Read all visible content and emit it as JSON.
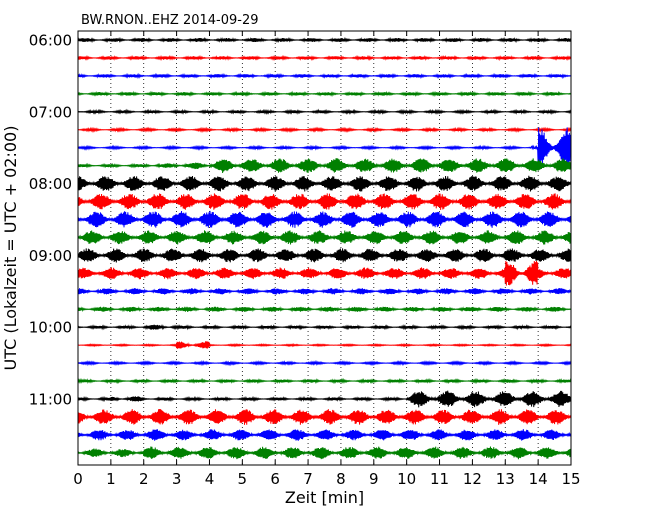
{
  "chart_data": {
    "type": "line",
    "title": "BW.RNON..EHZ 2014-09-29",
    "xlabel": "Zeit  [min]",
    "ylabel": "UTC (Lokalzeit = UTC + 02:00)",
    "xlim": [
      0,
      15
    ],
    "x_ticks": [
      "0",
      "1",
      "2",
      "3",
      "4",
      "5",
      "6",
      "7",
      "8",
      "9",
      "10",
      "11",
      "12",
      "13",
      "14",
      "15"
    ],
    "y_tick_labels": [
      "06:00",
      "07:00",
      "08:00",
      "09:00",
      "10:00",
      "11:00"
    ],
    "grid": {
      "vertical_dotted": true
    },
    "colors": [
      "#000000",
      "#ff0000",
      "#0000ff",
      "#008000"
    ],
    "series": [
      {
        "time": "06:00",
        "color": "#000000",
        "amplitude": [
          0.25,
          0.25,
          0.25,
          0.25,
          0.25,
          0.25,
          0.25,
          0.25,
          0.25,
          0.25,
          0.25,
          0.25,
          0.25,
          0.25,
          0.25,
          0.25
        ]
      },
      {
        "time": "06:15",
        "color": "#ff0000",
        "amplitude": [
          0.22,
          0.22,
          0.22,
          0.22,
          0.22,
          0.22,
          0.22,
          0.22,
          0.22,
          0.22,
          0.22,
          0.22,
          0.22,
          0.22,
          0.22,
          0.22
        ]
      },
      {
        "time": "06:30",
        "color": "#0000ff",
        "amplitude": [
          0.22,
          0.22,
          0.22,
          0.22,
          0.22,
          0.22,
          0.22,
          0.22,
          0.22,
          0.22,
          0.22,
          0.22,
          0.22,
          0.22,
          0.22,
          0.22
        ]
      },
      {
        "time": "06:45",
        "color": "#008000",
        "amplitude": [
          0.22,
          0.22,
          0.22,
          0.22,
          0.22,
          0.22,
          0.22,
          0.22,
          0.22,
          0.22,
          0.22,
          0.22,
          0.22,
          0.22,
          0.22,
          0.22
        ]
      },
      {
        "time": "07:00",
        "color": "#000000",
        "amplitude": [
          0.18,
          0.18,
          0.18,
          0.18,
          0.18,
          0.18,
          0.18,
          0.18,
          0.18,
          0.18,
          0.18,
          0.18,
          0.18,
          0.18,
          0.18,
          0.18
        ]
      },
      {
        "time": "07:15",
        "color": "#ff0000",
        "amplitude": [
          0.16,
          0.16,
          0.16,
          0.16,
          0.16,
          0.16,
          0.16,
          0.16,
          0.16,
          0.16,
          0.16,
          0.16,
          0.16,
          0.16,
          0.16,
          0.16
        ]
      },
      {
        "time": "07:30",
        "color": "#0000ff",
        "amplitude": [
          0.15,
          0.15,
          0.15,
          0.15,
          0.15,
          0.15,
          0.15,
          0.15,
          0.15,
          0.15,
          0.15,
          0.15,
          0.15,
          0.15,
          2.6,
          0.15
        ],
        "spike_min": 13.85
      },
      {
        "time": "07:45",
        "color": "#008000",
        "amplitude": [
          0.2,
          0.2,
          0.3,
          0.45,
          0.95,
          0.95,
          0.95,
          0.95,
          0.95,
          0.95,
          0.95,
          0.95,
          0.95,
          0.95,
          0.95,
          0.95
        ]
      },
      {
        "time": "08:00",
        "color": "#000000",
        "amplitude": [
          1.0,
          1.0,
          1.0,
          1.0,
          1.0,
          1.0,
          1.0,
          1.0,
          1.0,
          1.0,
          1.0,
          1.0,
          1.0,
          1.0,
          1.0,
          1.0
        ]
      },
      {
        "time": "08:15",
        "color": "#ff0000",
        "amplitude": [
          1.05,
          1.05,
          1.05,
          1.05,
          1.05,
          1.05,
          1.05,
          1.05,
          1.05,
          1.05,
          1.05,
          1.05,
          1.05,
          1.05,
          1.05,
          1.05
        ]
      },
      {
        "time": "08:30",
        "color": "#0000ff",
        "amplitude": [
          1.05,
          1.05,
          1.1,
          1.1,
          1.1,
          1.05,
          1.05,
          1.05,
          1.05,
          1.05,
          1.05,
          1.05,
          1.05,
          1.05,
          1.05,
          1.05
        ]
      },
      {
        "time": "08:45",
        "color": "#008000",
        "amplitude": [
          0.9,
          0.9,
          0.9,
          0.9,
          0.9,
          0.9,
          0.9,
          0.9,
          0.9,
          0.9,
          0.9,
          0.9,
          0.9,
          0.9,
          0.9,
          0.9
        ]
      },
      {
        "time": "09:00",
        "color": "#000000",
        "amplitude": [
          0.9,
          0.9,
          0.9,
          0.9,
          0.9,
          0.9,
          0.9,
          0.9,
          0.9,
          0.9,
          0.9,
          0.9,
          0.9,
          0.9,
          0.9,
          0.9
        ]
      },
      {
        "time": "09:15",
        "color": "#ff0000",
        "amplitude": [
          0.75,
          0.75,
          0.75,
          0.75,
          0.75,
          0.75,
          0.75,
          0.75,
          0.75,
          0.75,
          0.75,
          0.75,
          0.75,
          1.6,
          0.75,
          0.75
        ]
      },
      {
        "time": "09:30",
        "color": "#0000ff",
        "amplitude": [
          0.4,
          0.4,
          0.4,
          0.4,
          0.4,
          0.4,
          0.4,
          0.4,
          0.4,
          0.4,
          0.4,
          0.4,
          0.4,
          0.4,
          0.4,
          0.4
        ]
      },
      {
        "time": "09:45",
        "color": "#008000",
        "amplitude": [
          0.32,
          0.32,
          0.32,
          0.32,
          0.32,
          0.32,
          0.32,
          0.32,
          0.32,
          0.32,
          0.32,
          0.32,
          0.32,
          0.32,
          0.32,
          0.32
        ]
      },
      {
        "time": "10:00",
        "color": "#000000",
        "amplitude": [
          0.2,
          0.2,
          0.35,
          0.2,
          0.2,
          0.2,
          0.2,
          0.2,
          0.2,
          0.2,
          0.2,
          0.2,
          0.2,
          0.2,
          0.2,
          0.2
        ]
      },
      {
        "time": "10:15",
        "color": "#ff0000",
        "amplitude": [
          0.1,
          0.1,
          0.1,
          0.5,
          0.1,
          0.1,
          0.1,
          0.1,
          0.1,
          0.1,
          0.1,
          0.1,
          0.1,
          0.1,
          0.1,
          0.1
        ]
      },
      {
        "time": "10:30",
        "color": "#0000ff",
        "amplitude": [
          0.15,
          0.15,
          0.15,
          0.15,
          0.15,
          0.15,
          0.15,
          0.15,
          0.15,
          0.15,
          0.15,
          0.15,
          0.15,
          0.15,
          0.15,
          0.15
        ]
      },
      {
        "time": "10:45",
        "color": "#008000",
        "amplitude": [
          0.2,
          0.2,
          0.2,
          0.2,
          0.2,
          0.2,
          0.2,
          0.2,
          0.2,
          0.2,
          0.2,
          0.2,
          0.2,
          0.2,
          0.2,
          0.2
        ]
      },
      {
        "time": "11:00",
        "color": "#000000",
        "amplitude": [
          0.2,
          0.35,
          0.2,
          0.2,
          0.2,
          0.2,
          0.2,
          0.2,
          0.2,
          0.2,
          1.05,
          1.05,
          1.05,
          1.05,
          1.05,
          1.05
        ]
      },
      {
        "time": "11:15",
        "color": "#ff0000",
        "amplitude": [
          1.0,
          1.0,
          1.0,
          1.0,
          1.0,
          1.0,
          1.0,
          1.0,
          1.0,
          1.0,
          1.0,
          1.0,
          1.0,
          1.0,
          1.0,
          1.0
        ]
      },
      {
        "time": "11:30",
        "color": "#0000ff",
        "amplitude": [
          0.7,
          0.7,
          0.75,
          0.7,
          0.75,
          0.7,
          0.75,
          0.7,
          0.7,
          0.75,
          0.75,
          0.75,
          0.7,
          0.75,
          0.7,
          0.7
        ]
      },
      {
        "time": "11:45",
        "color": "#008000",
        "amplitude": [
          0.55,
          0.55,
          0.8,
          0.8,
          0.8,
          0.8,
          0.8,
          0.8,
          0.8,
          0.8,
          0.8,
          0.8,
          0.8,
          0.8,
          0.8,
          0.8
        ]
      }
    ]
  }
}
